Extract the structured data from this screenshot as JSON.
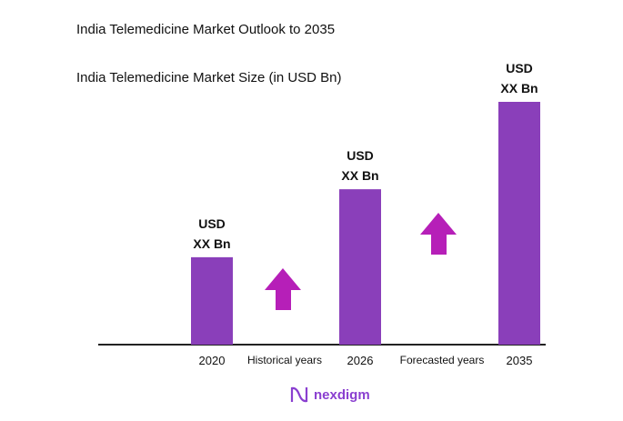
{
  "title": "India Telemedicine Market Outlook to 2035",
  "chart_data": {
    "type": "bar",
    "title": "India Telemedicine Market Size (in USD Bn)",
    "categories": [
      "2020",
      "2026",
      "2035"
    ],
    "values_relative": [
      36,
      64,
      100
    ],
    "data_labels": [
      [
        "USD",
        "XX Bn"
      ],
      [
        "USD",
        "XX Bn"
      ],
      [
        "USD",
        "XX Bn"
      ]
    ],
    "period_labels": [
      "Historical years",
      "Forecasted years"
    ],
    "bar_color": "#8a3fba",
    "arrow_color": "#b61fb8",
    "grid": false,
    "legend": "none"
  },
  "brand": "nexdigm"
}
